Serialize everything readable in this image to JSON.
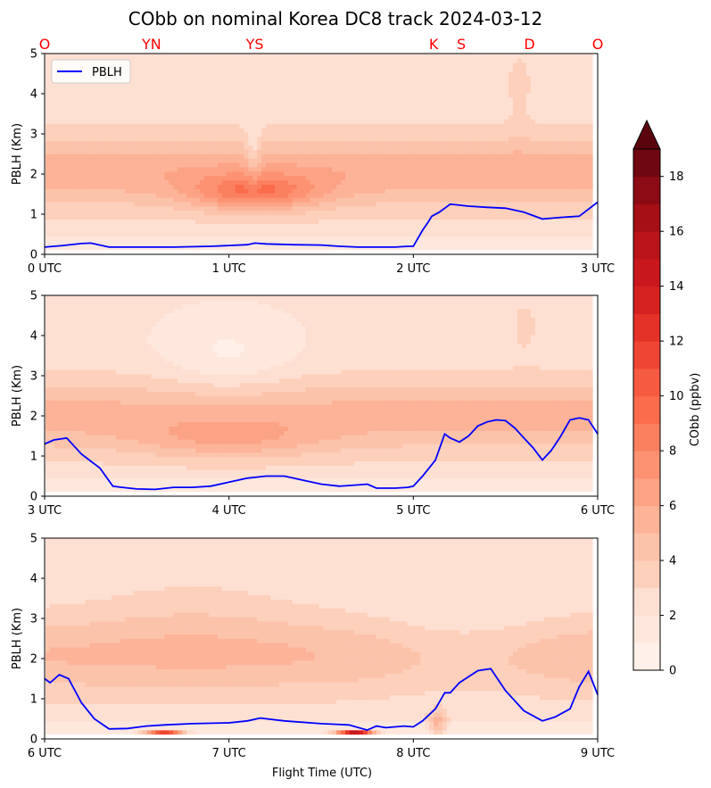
{
  "chart_data": {
    "type": "heatmap",
    "title": "CObb on nominal Korea DC8 track 2024-03-12",
    "xlabel": "Flight Time (UTC)",
    "ylabel": "PBLH (Km)",
    "ylim": [
      0,
      5
    ],
    "yticks": [
      "0",
      "1",
      "2",
      "3",
      "4",
      "5"
    ],
    "location_markers": [
      {
        "label": "O",
        "time_utc": 0.0
      },
      {
        "label": "YN",
        "time_utc": 0.58
      },
      {
        "label": "YS",
        "time_utc": 1.14
      },
      {
        "label": "K",
        "time_utc": 2.11
      },
      {
        "label": "S",
        "time_utc": 2.26
      },
      {
        "label": "D",
        "time_utc": 2.63
      },
      {
        "label": "O",
        "time_utc": 3.0
      }
    ],
    "legend": {
      "entries": [
        "PBLH"
      ],
      "placement": "upper-left"
    },
    "colorbar": {
      "label": "CObb (ppbv)",
      "ticks": [
        "0",
        "2",
        "4",
        "6",
        "8",
        "10",
        "12",
        "14",
        "16",
        "18"
      ],
      "range": [
        0,
        19
      ],
      "extend": "max",
      "levels": [
        0,
        1,
        2,
        3,
        4,
        5,
        6,
        7,
        8,
        9,
        10,
        11,
        12,
        13,
        14,
        15,
        16,
        17,
        18,
        19
      ],
      "colors": [
        "#fff0e9",
        "#fee8de",
        "#fee0d3",
        "#fdd0bc",
        "#fcc3ab",
        "#fcb398",
        "#fca285",
        "#fc9272",
        "#fb8060",
        "#fb6c4c",
        "#f65b42",
        "#ef4533",
        "#e53228",
        "#d52221",
        "#c9181d",
        "#b91419",
        "#a50f15",
        "#8c0a13",
        "#6f0711",
        "#5a050e"
      ]
    },
    "panels": [
      {
        "xlim": [
          0,
          3
        ],
        "xticks": [
          "0 UTC",
          "1 UTC",
          "2 UTC",
          "3 UTC"
        ],
        "pblh": {
          "time": [
            0.0,
            0.1,
            0.2,
            0.25,
            0.35,
            0.5,
            0.7,
            0.9,
            1.0,
            1.1,
            1.14,
            1.2,
            1.35,
            1.5,
            1.6,
            1.7,
            1.8,
            1.9,
            1.97,
            2.0,
            2.05,
            2.08,
            2.1,
            2.14,
            2.2,
            2.3,
            2.4,
            2.5,
            2.55,
            2.6,
            2.7,
            2.75,
            2.8,
            2.9,
            3.0
          ],
          "values": [
            0.18,
            0.22,
            0.27,
            0.28,
            0.18,
            0.18,
            0.18,
            0.2,
            0.22,
            0.24,
            0.28,
            0.26,
            0.24,
            0.23,
            0.2,
            0.18,
            0.18,
            0.18,
            0.2,
            0.2,
            0.6,
            0.8,
            0.95,
            1.05,
            1.25,
            1.2,
            1.17,
            1.15,
            1.1,
            1.05,
            0.88,
            0.9,
            0.92,
            0.95,
            1.3
          ]
        }
      },
      {
        "xlim": [
          3,
          6
        ],
        "xticks": [
          "3 UTC",
          "4 UTC",
          "5 UTC",
          "6 UTC"
        ],
        "pblh": {
          "time": [
            3.0,
            3.05,
            3.12,
            3.2,
            3.3,
            3.37,
            3.42,
            3.5,
            3.6,
            3.7,
            3.8,
            3.9,
            4.0,
            4.1,
            4.2,
            4.3,
            4.4,
            4.5,
            4.6,
            4.7,
            4.75,
            4.8,
            4.9,
            4.97,
            5.0,
            5.05,
            5.12,
            5.17,
            5.2,
            5.25,
            5.3,
            5.35,
            5.4,
            5.45,
            5.5,
            5.55,
            5.6,
            5.65,
            5.7,
            5.75,
            5.8,
            5.85,
            5.9,
            5.95,
            6.0
          ],
          "values": [
            1.3,
            1.4,
            1.45,
            1.05,
            0.7,
            0.25,
            0.22,
            0.18,
            0.17,
            0.22,
            0.22,
            0.25,
            0.35,
            0.45,
            0.5,
            0.5,
            0.4,
            0.3,
            0.25,
            0.28,
            0.3,
            0.2,
            0.2,
            0.22,
            0.25,
            0.5,
            0.9,
            1.55,
            1.45,
            1.35,
            1.5,
            1.75,
            1.85,
            1.9,
            1.88,
            1.7,
            1.45,
            1.2,
            0.9,
            1.15,
            1.5,
            1.9,
            1.95,
            1.9,
            1.55
          ]
        }
      },
      {
        "xlim": [
          6,
          9
        ],
        "xticks": [
          "6 UTC",
          "7 UTC",
          "8 UTC",
          "9 UTC"
        ],
        "pblh": {
          "time": [
            6.0,
            6.03,
            6.08,
            6.13,
            6.2,
            6.27,
            6.35,
            6.45,
            6.55,
            6.65,
            6.8,
            7.0,
            7.1,
            7.17,
            7.3,
            7.5,
            7.65,
            7.75,
            7.8,
            7.85,
            7.95,
            8.0,
            8.05,
            8.12,
            8.17,
            8.2,
            8.25,
            8.35,
            8.42,
            8.5,
            8.6,
            8.7,
            8.77,
            8.85,
            8.9,
            8.95,
            9.0
          ],
          "values": [
            1.5,
            1.4,
            1.6,
            1.5,
            0.9,
            0.5,
            0.25,
            0.26,
            0.32,
            0.35,
            0.38,
            0.4,
            0.45,
            0.52,
            0.45,
            0.38,
            0.35,
            0.22,
            0.32,
            0.28,
            0.32,
            0.3,
            0.45,
            0.75,
            1.15,
            1.15,
            1.4,
            1.7,
            1.75,
            1.2,
            0.7,
            0.45,
            0.55,
            0.75,
            1.3,
            1.68,
            1.1
          ]
        }
      }
    ]
  }
}
